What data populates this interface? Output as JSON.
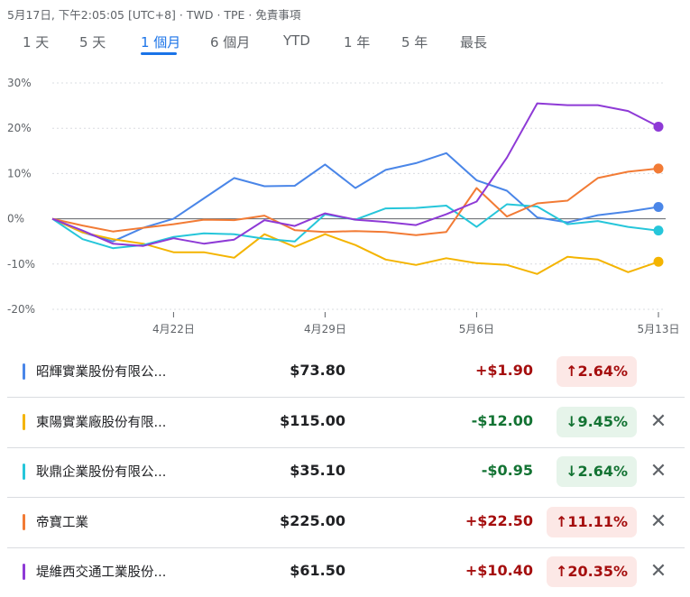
{
  "header": {
    "info": "5月17日, 下午2:05:05 [UTC+8] · TWD · TPE · 免責事項"
  },
  "tabs": [
    {
      "label": "1 天"
    },
    {
      "label": "5 天"
    },
    {
      "label": "1 個月"
    },
    {
      "label": "6 個月"
    },
    {
      "label": "YTD"
    },
    {
      "label": "1 年"
    },
    {
      "label": "5 年"
    },
    {
      "label": "最長"
    }
  ],
  "active_tab": 2,
  "chart_data": {
    "type": "line",
    "ylim": [
      -20,
      30
    ],
    "y_ticks": [
      "30%",
      "20%",
      "10%",
      "0%",
      "-10%",
      "-20%"
    ],
    "x_tick_labels": [
      {
        "label": "4月22日",
        "index": 4
      },
      {
        "label": "4月29日",
        "index": 9
      },
      {
        "label": "5月6日",
        "index": 14
      },
      {
        "label": "5月13日",
        "index": 20
      }
    ],
    "grid": true,
    "series": [
      {
        "name": "昭輝實業股份有限公...",
        "color": "#4a86e8",
        "values": [
          0,
          -3,
          -5,
          -2,
          0,
          4.5,
          9,
          7.2,
          7.3,
          12,
          6.8,
          10.8,
          12.3,
          14.5,
          8.5,
          6.2,
          0.3,
          -0.8,
          0.8,
          1.6,
          2.6
        ]
      },
      {
        "name": "東陽實業廠股份有限...",
        "color": "#f4b400",
        "values": [
          0,
          -3,
          -4.5,
          -5.5,
          -7.4,
          -7.4,
          -8.6,
          -3.4,
          -6.2,
          -3.4,
          -5.8,
          -9,
          -10.2,
          -8.7,
          -9.8,
          -10.2,
          -12.2,
          -8.4,
          -9,
          -11.8,
          -9.5
        ]
      },
      {
        "name": "耿鼎企業股份有限公...",
        "color": "#26c6da",
        "values": [
          0,
          -4.5,
          -6.5,
          -5.8,
          -4,
          -3.2,
          -3.4,
          -4.4,
          -5,
          1,
          -0.2,
          2.3,
          2.4,
          2.9,
          -1.8,
          3.2,
          2.7,
          -1.2,
          -0.5,
          -1.8,
          -2.6
        ]
      },
      {
        "name": "帝寶工業",
        "color": "#f27b35",
        "values": [
          0,
          -1.5,
          -2.8,
          -2,
          -1.2,
          -0.2,
          -0.3,
          0.7,
          -2.5,
          -2.9,
          -2.7,
          -2.9,
          -3.6,
          -2.9,
          6.8,
          0.5,
          3.4,
          4,
          9,
          10.4,
          11.1
        ]
      },
      {
        "name": "堤維西交通工業股份...",
        "color": "#8e3ad6",
        "values": [
          0,
          -2.6,
          -5.5,
          -6,
          -4.3,
          -5.5,
          -4.6,
          -0.3,
          -1.6,
          1.2,
          -0.2,
          -0.7,
          -1.4,
          1,
          3.8,
          13.5,
          25.5,
          25.1,
          25.1,
          23.8,
          20.35
        ]
      }
    ]
  },
  "stocks": [
    {
      "name": "昭輝實業股份有限公...",
      "price": "$73.80",
      "change": "+$1.90",
      "pct": "2.64%",
      "arrow": "↑",
      "dir": "pos",
      "color": "#4a86e8",
      "closable": false
    },
    {
      "name": "東陽實業廠股份有限...",
      "price": "$115.00",
      "change": "-$12.00",
      "pct": "9.45%",
      "arrow": "↓",
      "dir": "neg",
      "color": "#f4b400",
      "closable": true
    },
    {
      "name": "耿鼎企業股份有限公...",
      "price": "$35.10",
      "change": "-$0.95",
      "pct": "2.64%",
      "arrow": "↓",
      "dir": "neg",
      "color": "#26c6da",
      "closable": true
    },
    {
      "name": "帝寶工業",
      "price": "$225.00",
      "change": "+$22.50",
      "pct": "11.11%",
      "arrow": "↑",
      "dir": "pos",
      "color": "#f27b35",
      "closable": true
    },
    {
      "name": "堤維西交通工業股份...",
      "price": "$61.50",
      "change": "+$10.40",
      "pct": "20.35%",
      "arrow": "↑",
      "dir": "pos",
      "color": "#8e3ad6",
      "closable": true
    }
  ],
  "close_glyph": "✕"
}
